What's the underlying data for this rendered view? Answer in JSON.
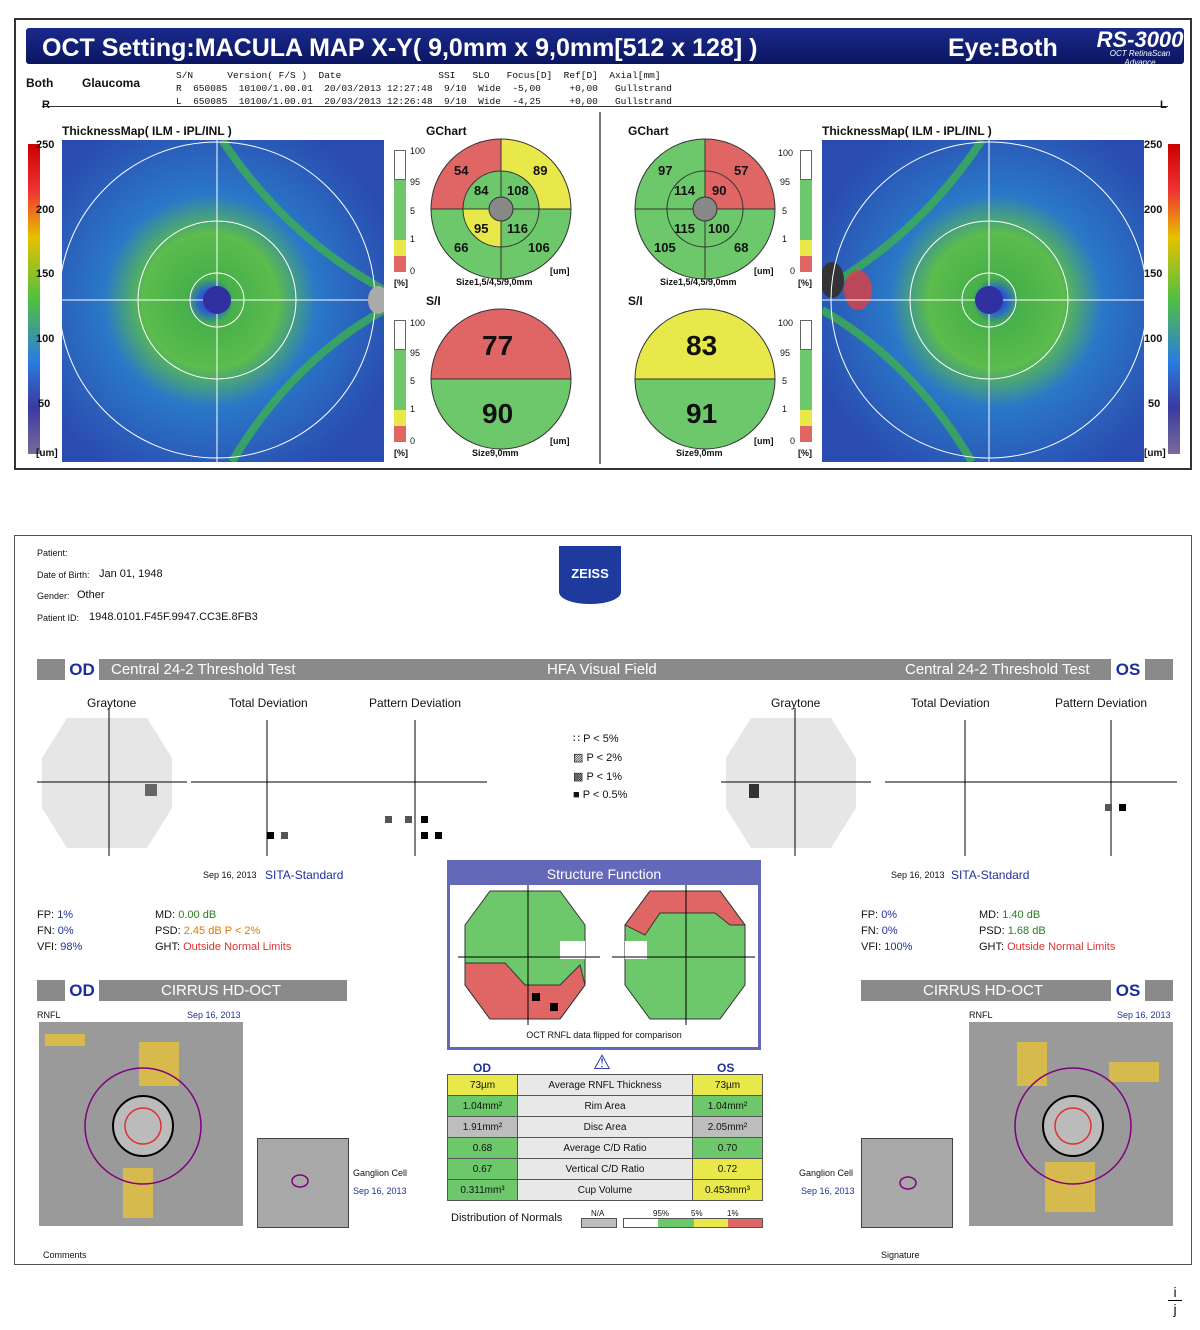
{
  "oct": {
    "title": "OCT Setting:MACULA MAP X-Y( 9,0mm x 9,0mm[512 x 128] )",
    "eye": "Eye:Both",
    "logo": "RS-3000",
    "logo_sub1": "OCT RetinaScan",
    "logo_sub2": "Advance",
    "eye_label": "Both",
    "diagnosis": "Glaucoma",
    "table_header": "S/N      Version( F/S )  Date                 SSI   SLO   Focus[D]  Ref[D]  Axial[mm]",
    "row_r": "R  650085  10100/1.00.01  20/03/2013 12:27:48  9/10  Wide  -5,00     +0,00   Gullstrand",
    "row_l": "L  650085  10100/1.00.01  20/03/2013 12:26:48  9/10  Wide  -4,25     +0,00   Gullstrand",
    "side_r": "R",
    "side_l": "L",
    "thickness_title": "ThicknessMap( ILM - IPL/INL )",
    "colorbar_ticks": [
      "250",
      "200",
      "150",
      "100",
      "50"
    ],
    "colorbar_unit": "[um]",
    "gchart_title": "GChart",
    "si_title": "S/I",
    "pct_ticks": [
      "100",
      "95",
      "5",
      "1",
      "0"
    ],
    "pct_unit": "[%]",
    "um_unit": "[um]",
    "gchart_size": "Size1,5/4,5/9,0mm",
    "si_size": "Size9,0mm",
    "right_eye": {
      "outer_tl": "54",
      "outer_tr": "89",
      "outer_bl": "66",
      "outer_br": "106",
      "inner_tl": "84",
      "inner_tr": "108",
      "inner_bl": "95",
      "inner_br": "116",
      "si_top": "77",
      "si_bottom": "90"
    },
    "left_eye": {
      "outer_tl": "97",
      "outer_tr": "57",
      "outer_bl": "105",
      "outer_br": "68",
      "inner_tl": "114",
      "inner_tr": "90",
      "inner_bl": "115",
      "inner_br": "100",
      "si_top": "83",
      "si_bottom": "91"
    },
    "colors": {
      "red": "#e06666",
      "yellow": "#e8e84a",
      "green": "#6cc86a",
      "gray": "#888888"
    }
  },
  "hfa": {
    "patient_label": "Patient:",
    "dob_label": "Date of Birth:",
    "dob": "Jan 01, 1948",
    "gender_label": "Gender:",
    "gender": "Other",
    "pid_label": "Patient ID:",
    "pid": "1948.0101.F45F.9947.CC3E.8FB3",
    "logo": "ZEISS",
    "od": "OD",
    "os": "OS",
    "test_name": "Central 24-2 Threshold Test",
    "center_title": "HFA Visual Field",
    "graytone": "Graytone",
    "total_dev": "Total Deviation",
    "pattern_dev": "Pattern Deviation",
    "legend": [
      "P < 5%",
      "P < 2%",
      "P < 1%",
      "P < 0.5%"
    ],
    "date": "Sep 16, 2013",
    "strategy": "SITA-Standard",
    "od_stats": {
      "fp_label": "FP:",
      "fp": "1%",
      "fn_label": "FN:",
      "fn": "0%",
      "vfi_label": "VFI:",
      "vfi": "98%",
      "md_label": "MD:",
      "md": "0.00 dB",
      "psd_label": "PSD:",
      "psd": "2.45 dB P < 2%",
      "ght_label": "GHT:",
      "ght": "Outside Normal Limits"
    },
    "os_stats": {
      "fp_label": "FP:",
      "fp": "0%",
      "fn_label": "FN:",
      "fn": "0%",
      "vfi_label": "VFI:",
      "vfi": "100%",
      "md_label": "MD:",
      "md": "1.40 dB",
      "psd_label": "PSD:",
      "psd": "1.68 dB",
      "ght_label": "GHT:",
      "ght": "Outside Normal Limits"
    },
    "structure_function": "Structure Function",
    "flip_note": "OCT RNFL data flipped for comparison",
    "cirrus": "CIRRUS HD-OCT",
    "rnfl": "RNFL",
    "ganglion": "Ganglion Cell",
    "table": [
      {
        "od": "73µm",
        "label": "Average RNFL Thickness",
        "os": "73µm",
        "odc": "#e8e84a",
        "osc": "#e8e84a"
      },
      {
        "od": "1.04mm²",
        "label": "Rim Area",
        "os": "1.04mm²",
        "odc": "#6cc86a",
        "osc": "#6cc86a"
      },
      {
        "od": "1.91mm²",
        "label": "Disc Area",
        "os": "2.05mm²",
        "odc": "#bdbdbd",
        "osc": "#bdbdbd"
      },
      {
        "od": "0.68",
        "label": "Average C/D Ratio",
        "os": "0.70",
        "odc": "#6cc86a",
        "osc": "#6cc86a"
      },
      {
        "od": "0.67",
        "label": "Vertical C/D Ratio",
        "os": "0.72",
        "odc": "#6cc86a",
        "osc": "#e8e84a"
      },
      {
        "od": "0.311mm³",
        "label": "Cup Volume",
        "os": "0.453mm³",
        "odc": "#6cc86a",
        "osc": "#e8e84a"
      }
    ],
    "dist_normals": "Distribution of Normals",
    "na": "N/A",
    "dist_ticks": [
      "95%",
      "5%",
      "1%"
    ],
    "comments": "Comments",
    "signature": "Signature"
  },
  "footer_mark_top": "i",
  "footer_mark_bottom": "j"
}
